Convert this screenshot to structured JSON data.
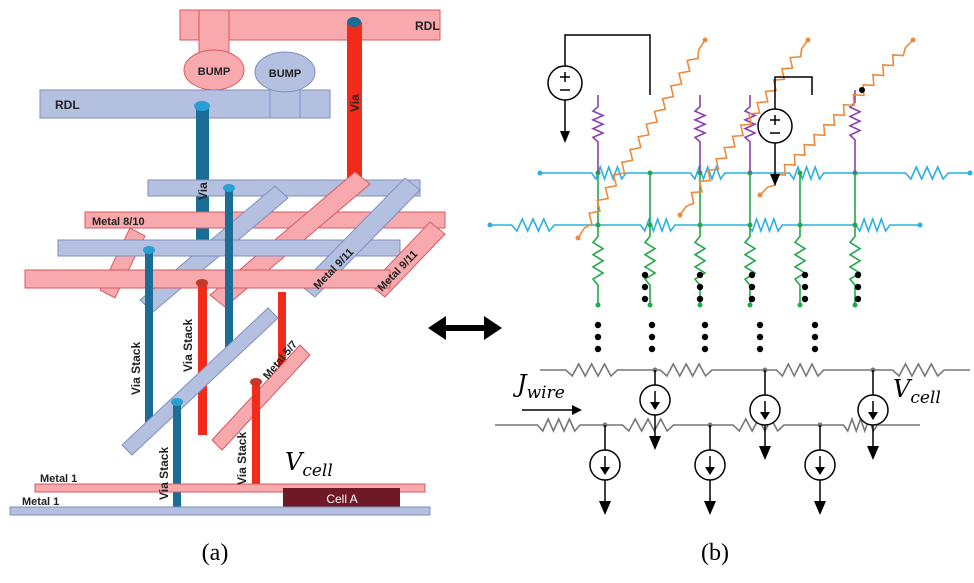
{
  "panel_a": {
    "rdl_top": "RDL",
    "bump_1": "BUMP",
    "bump_2": "BUMP",
    "rdl_left": "RDL",
    "via_1": "Via",
    "via_2": "Via",
    "metal_8_10": "Metal 8/10",
    "metal_9_11_a": "Metal 9/11",
    "metal_9_11_b": "Metal 9/11",
    "via_stack_1": "Via Stack",
    "via_stack_2": "Via Stack",
    "via_stack_3": "Via Stack",
    "via_stack_4": "Via Stack",
    "metal_5_7": "Metal 5/7",
    "metal_1_top": "Metal 1",
    "metal_1_bottom": "Metal 1",
    "cell_a": "Cell A",
    "v_cell": {
      "symbol": "V",
      "subscript": "cell"
    },
    "caption": "(a)"
  },
  "panel_b": {
    "j_wire": {
      "symbol": "J",
      "subscript": "wire"
    },
    "v_cell": {
      "symbol": "V",
      "subscript": "cell"
    },
    "caption": "(b)"
  }
}
